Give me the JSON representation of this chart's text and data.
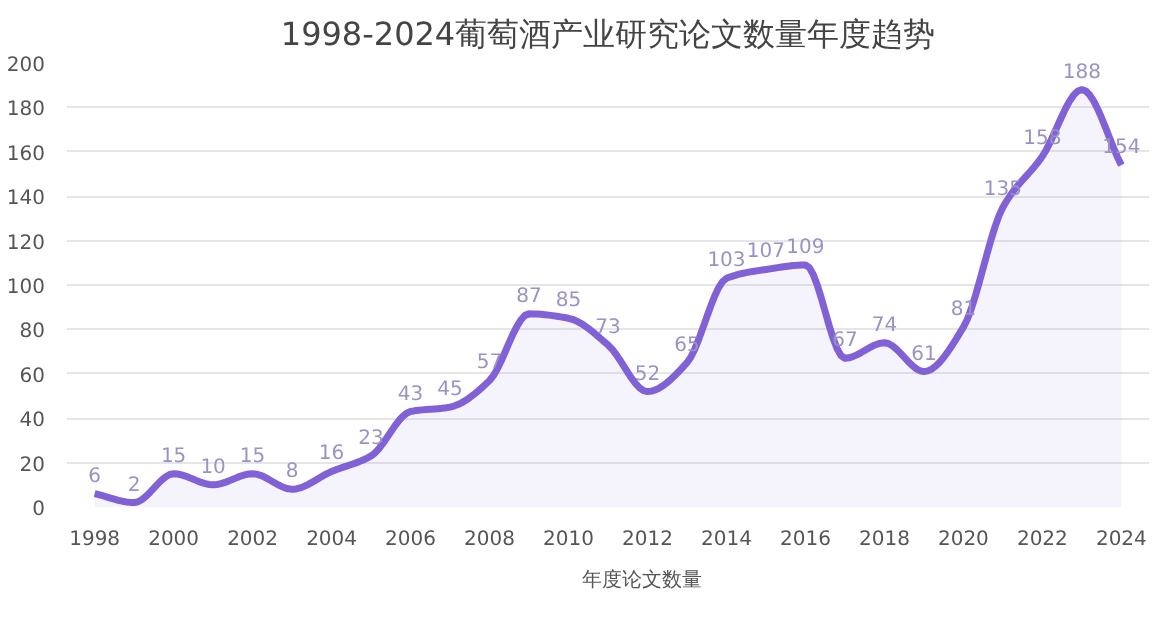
{
  "chart_data": {
    "type": "area",
    "title": "1998-2024葡萄酒产业研究论文数量年度趋势",
    "x": [
      1998,
      1999,
      2000,
      2001,
      2002,
      2003,
      2004,
      2005,
      2006,
      2007,
      2008,
      2009,
      2010,
      2011,
      2012,
      2013,
      2014,
      2015,
      2016,
      2017,
      2018,
      2019,
      2020,
      2021,
      2022,
      2023,
      2024
    ],
    "series": [
      {
        "name": "年度论文数量",
        "color": "#8062d6",
        "values": [
          6,
          2,
          15,
          10,
          15,
          8,
          16,
          23,
          43,
          45,
          57,
          87,
          85,
          73,
          52,
          65,
          103,
          107,
          109,
          67,
          74,
          61,
          81,
          135,
          158,
          188,
          154
        ]
      }
    ],
    "xlim": [
      1997.3,
      2024.7
    ],
    "xticks": [
      1998,
      2000,
      2002,
      2004,
      2006,
      2008,
      2010,
      2012,
      2014,
      2016,
      2018,
      2020,
      2022,
      2024
    ],
    "ylim": [
      0,
      200
    ],
    "yticks": [
      0,
      20,
      40,
      60,
      80,
      100,
      120,
      140,
      160,
      180,
      200
    ],
    "grid": "y",
    "legend": "bottom",
    "data_labels": true
  }
}
